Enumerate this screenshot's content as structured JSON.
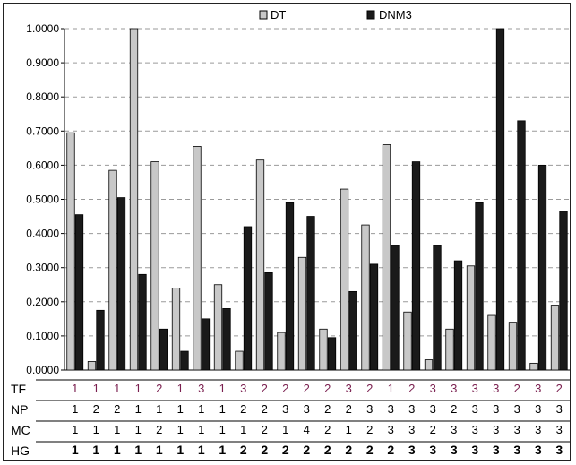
{
  "chart_data": {
    "type": "bar",
    "ylim": [
      0,
      1
    ],
    "y_ticks": [
      "0.0000",
      "0.1000",
      "0.2000",
      "0.3000",
      "0.4000",
      "0.5000",
      "0.6000",
      "0.7000",
      "0.8000",
      "0.9000",
      "1.0000"
    ],
    "grid": "horizontal dashed",
    "legend_position": "top",
    "series": [
      {
        "name": "DT",
        "color": "#c8c8c8",
        "values": [
          0.695,
          0.025,
          0.585,
          1.0,
          0.61,
          0.24,
          0.655,
          0.25,
          0.055,
          0.615,
          0.11,
          0.33,
          0.12,
          0.53,
          0.425,
          0.66,
          0.17,
          0.03,
          0.12,
          0.305,
          0.16,
          0.14,
          0.02,
          0.19
        ]
      },
      {
        "name": "DNM3",
        "color": "#1a1a1a",
        "values": [
          0.455,
          0.175,
          0.505,
          0.28,
          0.12,
          0.055,
          0.15,
          0.18,
          0.42,
          0.285,
          0.49,
          0.45,
          0.095,
          0.23,
          0.31,
          0.365,
          0.61,
          0.365,
          0.32,
          0.49,
          1.0,
          0.73,
          0.6,
          0.465
        ]
      }
    ],
    "table": {
      "rows": [
        {
          "label": "TF",
          "values": [
            "1",
            "1",
            "1",
            "1",
            "2",
            "1",
            "3",
            "1",
            "3",
            "2",
            "2",
            "2",
            "2",
            "3",
            "2",
            "1",
            "2",
            "3",
            "3",
            "3",
            "3",
            "2",
            "3",
            "2"
          ]
        },
        {
          "label": "NP",
          "values": [
            "1",
            "2",
            "2",
            "1",
            "1",
            "1",
            "1",
            "1",
            "2",
            "2",
            "3",
            "3",
            "2",
            "2",
            "3",
            "3",
            "3",
            "3",
            "2",
            "3",
            "3",
            "3",
            "3",
            "3"
          ]
        },
        {
          "label": "MC",
          "values": [
            "1",
            "1",
            "1",
            "1",
            "2",
            "1",
            "1",
            "1",
            "1",
            "2",
            "1",
            "4",
            "2",
            "1",
            "2",
            "3",
            "3",
            "2",
            "3",
            "3",
            "3",
            "3",
            "3",
            "3"
          ]
        },
        {
          "label": "HG",
          "values": [
            "1",
            "1",
            "1",
            "1",
            "1",
            "1",
            "1",
            "1",
            "2",
            "2",
            "2",
            "2",
            "2",
            "2",
            "2",
            "2",
            "3",
            "3",
            "3",
            "3",
            "3",
            "3",
            "3",
            "3"
          ]
        }
      ]
    }
  }
}
